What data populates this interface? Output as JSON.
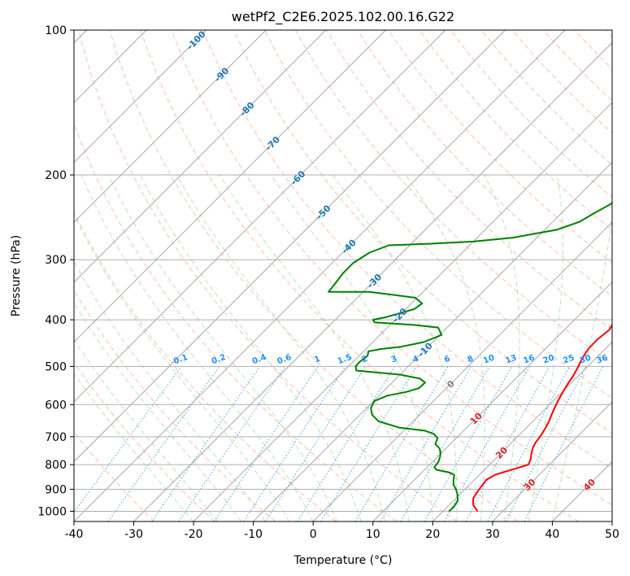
{
  "chart_data": {
    "type": "line",
    "title": "wetPf2_C2E6.2025.102.00.16.G22",
    "xlabel": "Temperature (°C)",
    "ylabel": "Pressure (hPa)",
    "xlim": [
      -40,
      50
    ],
    "ylim": [
      1050,
      100
    ],
    "y_scale": "log",
    "grid": true,
    "x_ticks": [
      -40,
      -30,
      -20,
      -10,
      0,
      10,
      20,
      30,
      40,
      50
    ],
    "y_ticks": [
      100,
      200,
      300,
      400,
      500,
      600,
      700,
      800,
      900,
      1000
    ],
    "colors": {
      "temperature": "#ff0000",
      "dewpoint": "#008000",
      "isotherm": "#a0a0a0",
      "dry_adiabat": "#ff8c69",
      "moist_adiabat": "#88c888",
      "mixing_ratio": "#1e90ff",
      "isotherm_label": "#1f77b4",
      "warm_isotherm_label": "#d62728"
    },
    "series": [
      {
        "role": "temperature",
        "points": [
          [
            25.8,
            1000
          ],
          [
            24,
            970
          ],
          [
            22.9,
            940
          ],
          [
            22.5,
            910
          ],
          [
            22.2,
            880
          ],
          [
            22,
            860
          ],
          [
            22.6,
            840
          ],
          [
            24,
            825
          ],
          [
            26.5,
            800
          ],
          [
            26,
            780
          ],
          [
            25.2,
            760
          ],
          [
            24.5,
            740
          ],
          [
            24,
            720
          ],
          [
            23.8,
            700
          ],
          [
            23.2,
            670
          ],
          [
            22.7,
            650
          ],
          [
            21.7,
            620
          ],
          [
            20.8,
            590
          ],
          [
            20,
            560
          ],
          [
            19.5,
            540
          ],
          [
            19.2,
            525
          ],
          [
            18.6,
            505
          ],
          [
            17.7,
            480
          ],
          [
            17.2,
            460
          ],
          [
            17.1,
            440
          ],
          [
            17.5,
            420
          ],
          [
            16.8,
            400
          ],
          [
            15,
            380
          ],
          [
            13.5,
            360
          ],
          [
            12.2,
            340
          ],
          [
            11,
            320
          ],
          [
            9.8,
            300
          ],
          [
            8.4,
            280
          ],
          [
            7.2,
            260
          ],
          [
            6.5,
            245
          ],
          [
            6,
            230
          ],
          [
            5.5,
            215
          ],
          [
            5,
            200
          ],
          [
            4,
            185
          ],
          [
            3,
            170
          ],
          [
            1.8,
            155
          ],
          [
            0.5,
            140
          ],
          [
            0,
            130
          ],
          [
            0.4,
            120
          ],
          [
            1.3,
            110
          ],
          [
            2.1,
            105
          ],
          [
            3.5,
            100
          ]
        ]
      },
      {
        "role": "dewpoint",
        "points": [
          [
            21,
            1000
          ],
          [
            21.1,
            980
          ],
          [
            20.7,
            950
          ],
          [
            19.5,
            920
          ],
          [
            18.5,
            900
          ],
          [
            17.3,
            880
          ],
          [
            16.5,
            860
          ],
          [
            15.8,
            840
          ],
          [
            14.5,
            830
          ],
          [
            12,
            820
          ],
          [
            11.2,
            810
          ],
          [
            11,
            790
          ],
          [
            10.4,
            770
          ],
          [
            9.8,
            755
          ],
          [
            8.9,
            740
          ],
          [
            7.5,
            725
          ],
          [
            6.9,
            705
          ],
          [
            5.5,
            690
          ],
          [
            3.5,
            680
          ],
          [
            -1.3,
            670
          ],
          [
            -5.8,
            650
          ],
          [
            -8,
            630
          ],
          [
            -9.3,
            610
          ],
          [
            -9.9,
            590
          ],
          [
            -8.6,
            575
          ],
          [
            -6.1,
            565
          ],
          [
            -4.6,
            555
          ],
          [
            -4.5,
            540
          ],
          [
            -6,
            530
          ],
          [
            -10,
            520
          ],
          [
            -14,
            515
          ],
          [
            -18,
            510
          ],
          [
            -18.8,
            500
          ],
          [
            -18.9,
            490
          ],
          [
            -18.6,
            475
          ],
          [
            -19.2,
            465
          ],
          [
            -17.5,
            460
          ],
          [
            -14.5,
            455
          ],
          [
            -11.5,
            445
          ],
          [
            -9.7,
            430
          ],
          [
            -11.5,
            415
          ],
          [
            -16,
            410
          ],
          [
            -23,
            405
          ],
          [
            -23.7,
            400
          ],
          [
            -22,
            395
          ],
          [
            -18.6,
            380
          ],
          [
            -18.2,
            370
          ],
          [
            -20.3,
            360
          ],
          [
            -24.5,
            355
          ],
          [
            -29,
            350
          ],
          [
            -35.8,
            350
          ],
          [
            -36,
            340
          ],
          [
            -36.5,
            320
          ],
          [
            -36.5,
            305
          ],
          [
            -35.5,
            290
          ],
          [
            -33.5,
            280
          ],
          [
            -27,
            278
          ],
          [
            -20,
            275
          ],
          [
            -14,
            270
          ],
          [
            -8,
            260
          ],
          [
            -5.5,
            250
          ],
          [
            -4.5,
            240
          ],
          [
            -3.3,
            230
          ],
          [
            -3.3,
            215
          ],
          [
            -3.3,
            200
          ],
          [
            -3.4,
            185
          ],
          [
            -2.8,
            170
          ],
          [
            -1.5,
            160
          ],
          [
            -1.2,
            150
          ],
          [
            -2,
            140
          ],
          [
            -3,
            130
          ],
          [
            -3.8,
            120
          ],
          [
            -3.2,
            110
          ],
          [
            -1.5,
            105
          ],
          [
            0.3,
            100
          ]
        ]
      }
    ],
    "isotherm_labels": [
      "-100",
      "-90",
      "-80",
      "-70",
      "-60",
      "-50",
      "-40",
      "-30",
      "-20",
      "-10",
      "0",
      "10",
      "20",
      "30",
      "40"
    ],
    "isotherm_label_values": [
      -100,
      -90,
      -80,
      -70,
      -60,
      -50,
      -40,
      -30,
      -20,
      -10,
      0,
      10,
      20,
      30,
      40
    ],
    "mixing_ratio_labels": [
      "0.1",
      "0.2",
      "0.4",
      "0.6",
      "1",
      "1.5",
      "2",
      "3",
      "4",
      "6",
      "8",
      "10",
      "13",
      "16",
      "20",
      "25",
      "30",
      "36"
    ],
    "mixing_ratio_values": [
      0.1,
      0.2,
      0.4,
      0.6,
      1,
      1.5,
      2,
      3,
      4,
      6,
      8,
      10,
      13,
      16,
      20,
      25,
      30,
      36
    ],
    "mixing_ratio_label_pressure": 500
  }
}
